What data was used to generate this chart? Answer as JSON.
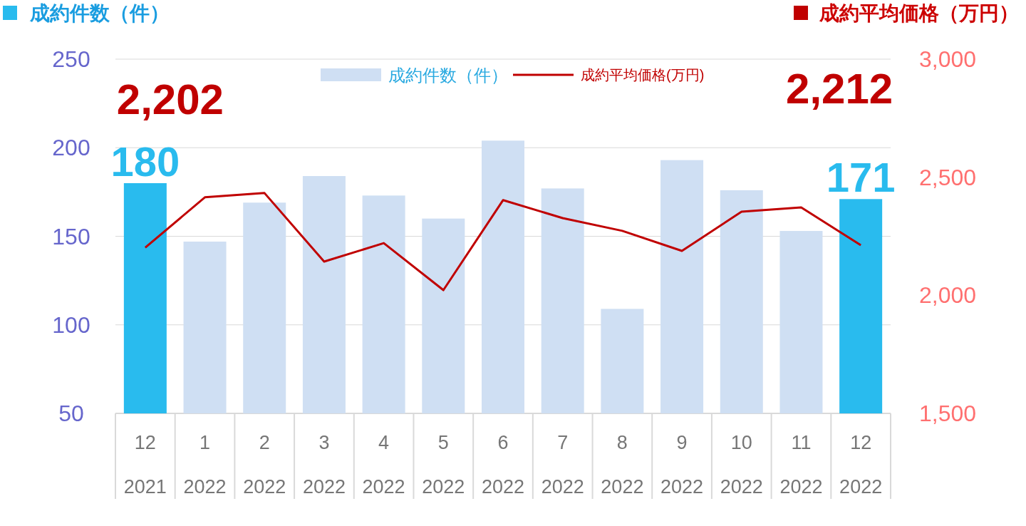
{
  "chart_data": {
    "type": "bar",
    "categories": [
      "12 2021",
      "1 2022",
      "2 2022",
      "3 2022",
      "4 2022",
      "5 2022",
      "6 2022",
      "7 2022",
      "8 2022",
      "9 2022",
      "10 2022",
      "11 2022",
      "12 2022"
    ],
    "ylabel": "成約件数（件）",
    "y2label": "成約平均価格（万円）",
    "ylim": [
      50,
      250
    ],
    "yticks": [
      50,
      100,
      150,
      200,
      250
    ],
    "y2lim": [
      1500,
      3000
    ],
    "y2ticks": [
      {
        "value": 1500,
        "label": "1,500"
      },
      {
        "value": 2000,
        "label": "2,000"
      },
      {
        "value": 2500,
        "label": "2,500"
      },
      {
        "value": 3000,
        "label": "3,000"
      }
    ],
    "grid": "y",
    "legend": "top",
    "series": [
      {
        "name": "成約件数（件）",
        "color": "#cfdff3",
        "colors": [
          "#29bbee",
          "#cfdff3",
          "#cfdff3",
          "#cfdff3",
          "#cfdff3",
          "#cfdff3",
          "#cfdff3",
          "#cfdff3",
          "#cfdff3",
          "#cfdff3",
          "#cfdff3",
          "#cfdff3",
          "#29bbee"
        ],
        "values": [
          180,
          147,
          169,
          184,
          173,
          160,
          204,
          177,
          109,
          193,
          176,
          153,
          171
        ],
        "value_labels": [
          "180",
          null,
          null,
          null,
          null,
          null,
          null,
          null,
          null,
          null,
          null,
          null,
          "171"
        ]
      },
      {
        "name": "成約平均価格(万円)",
        "type": "line",
        "axis": "y2",
        "color": "#c00000",
        "values": [
          2202,
          2415,
          2433,
          2143,
          2221,
          2022,
          2403,
          2327,
          2273,
          2188,
          2354,
          2372,
          2212
        ],
        "value_labels": [
          "2,202",
          null,
          null,
          null,
          null,
          null,
          null,
          null,
          null,
          null,
          null,
          null,
          "2,212"
        ]
      }
    ]
  }
}
